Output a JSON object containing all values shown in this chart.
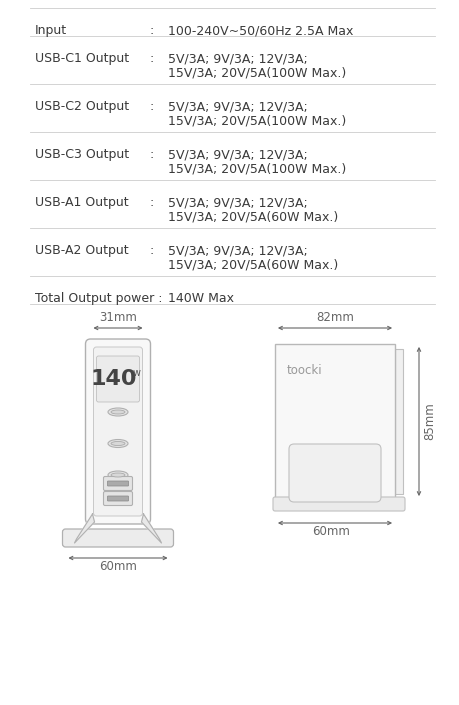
{
  "bg_color": "#ffffff",
  "text_color": "#3a3a3a",
  "line_color": "#cccccc",
  "dim_color": "#666666",
  "spec_rows": [
    {
      "label": "Input",
      "sep": ":",
      "val1": "100-240V~50/60Hz 2.5A Max",
      "val2": ""
    },
    {
      "label": "USB-C1 Output",
      "sep": ":",
      "val1": "5V/3A; 9V/3A; 12V/3A;",
      "val2": "15V/3A; 20V/5A(100W Max.)"
    },
    {
      "label": "USB-C2 Output",
      "sep": ":",
      "val1": "5V/3A; 9V/3A; 12V/3A;",
      "val2": "15V/3A; 20V/5A(100W Max.)"
    },
    {
      "label": "USB-C3 Output",
      "sep": ":",
      "val1": "5V/3A; 9V/3A; 12V/3A;",
      "val2": "15V/3A; 20V/5A(100W Max.)"
    },
    {
      "label": "USB-A1 Output",
      "sep": ":",
      "val1": "5V/3A; 9V/3A; 12V/3A;",
      "val2": "15V/3A; 20V/5A(60W Max.)"
    },
    {
      "label": "USB-A2 Output",
      "sep": ":",
      "val1": "5V/3A; 9V/3A; 12V/3A;",
      "val2": "15V/3A; 20V/5A(60W Max.)"
    },
    {
      "label": "Total Output power :",
      "sep": "",
      "val1": "140W Max",
      "val2": ""
    }
  ],
  "diag": {
    "left_top_dim": "31mm",
    "left_bot_dim": "60mm",
    "right_top_dim": "82mm",
    "right_bot_dim": "60mm",
    "right_side_dim": "85mm",
    "brand": "toocki",
    "display_text": "140",
    "display_unit": "w"
  },
  "font_size_table": 9.0,
  "font_size_dim": 8.5
}
